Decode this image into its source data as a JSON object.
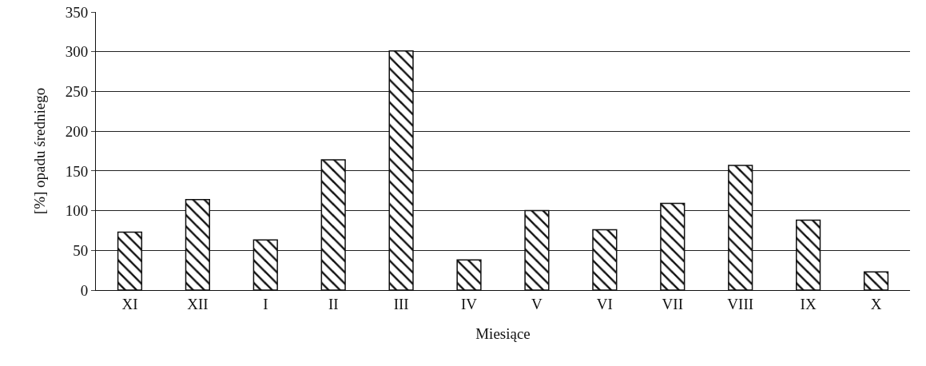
{
  "chart_data": {
    "type": "bar",
    "xlabel": "Miesiące",
    "ylabel": "[%] opadu średniego",
    "categories": [
      "XI",
      "XII",
      "I",
      "II",
      "III",
      "IV",
      "V",
      "VI",
      "VII",
      "VIII",
      "IX",
      "X"
    ],
    "values": [
      73,
      114,
      63,
      164,
      301,
      38,
      100,
      76,
      109,
      157,
      88,
      23
    ],
    "color": "#111111",
    "ylim": [
      0,
      350
    ],
    "yticks": [
      0,
      50,
      100,
      150,
      200,
      250,
      300,
      350
    ],
    "grid": "y",
    "legend": false
  }
}
